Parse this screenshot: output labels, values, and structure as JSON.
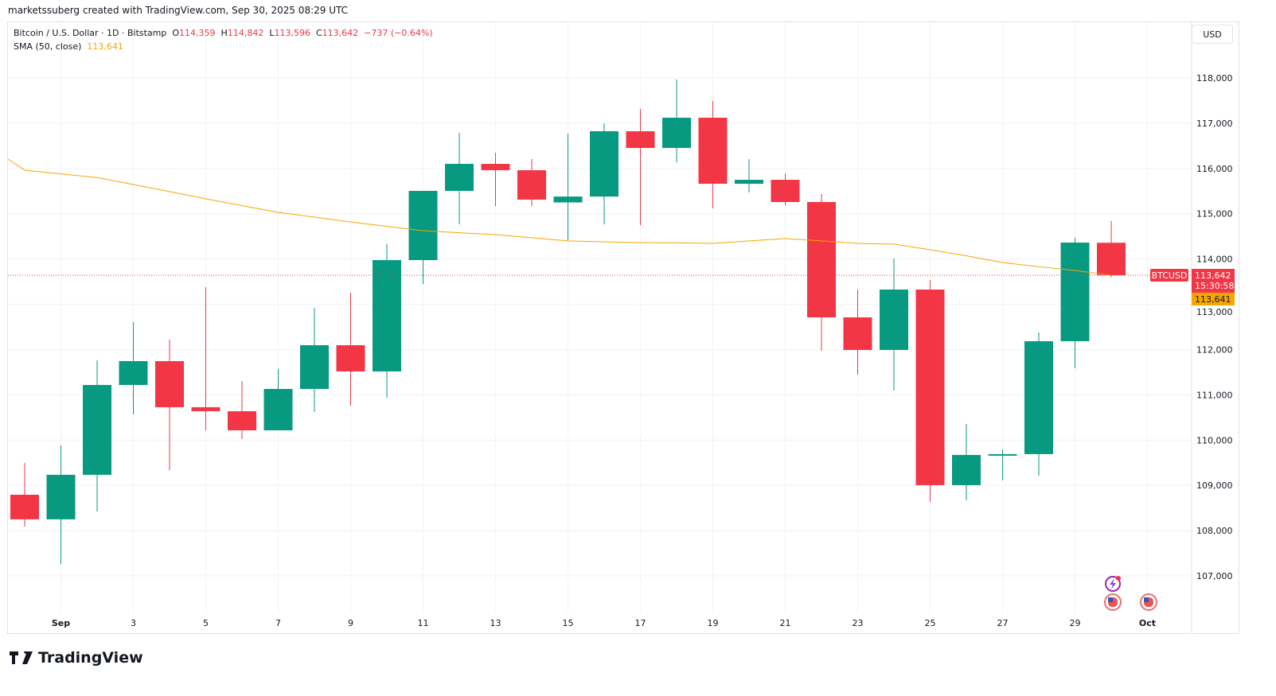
{
  "credit": "marketssuberg created with TradingView.com, Sep 30, 2025 08:29 UTC",
  "legend": {
    "symbol": "Bitcoin / U.S. Dollar · 1D · Bitstamp",
    "o_label": "O",
    "o": "114,359",
    "h_label": "H",
    "h": "114,842",
    "l_label": "L",
    "l": "113,596",
    "c_label": "C",
    "c": "113,642",
    "change": "−737 (−0.64%)",
    "sma_label": "SMA (50, close)",
    "sma_value": "113,641"
  },
  "currency_button": "USD",
  "logo_text": "TradingView",
  "price_tags": {
    "symbol": "BTCUSD",
    "last": "113,642",
    "countdown": "15:30:58",
    "sma": "113,641"
  },
  "colors": {
    "up": "#089981",
    "down": "#f23645",
    "sma": "#f7a600",
    "grid": "#f0f3fa"
  },
  "icons": [
    "lightning-event-icon",
    "us-flag-icon",
    "us-flag-icon"
  ],
  "chart_data": {
    "type": "candlestick",
    "ylim": [
      106300,
      118800
    ],
    "y_ticks": [
      "107,000",
      "108,000",
      "109,000",
      "110,000",
      "111,000",
      "112,000",
      "113,000",
      "114,000",
      "115,000",
      "116,000",
      "117,000",
      "118,000"
    ],
    "x_ticks": [
      "Sep",
      "3",
      "5",
      "7",
      "9",
      "11",
      "13",
      "15",
      "17",
      "19",
      "21",
      "23",
      "25",
      "27",
      "29",
      "Oct"
    ],
    "candles": [
      [
        "Aug 31",
        108793,
        109496,
        108090,
        108249
      ],
      [
        "Sep 1",
        108249,
        109882,
        107265,
        109233
      ],
      [
        "Sep 2",
        109233,
        111763,
        108424,
        111218
      ],
      [
        "Sep 3",
        111218,
        112606,
        110568,
        111745
      ],
      [
        "Sep 4",
        111745,
        112220,
        109338,
        110726
      ],
      [
        "Sep 5",
        110726,
        113379,
        110216,
        110638
      ],
      [
        "Sep 6",
        110638,
        111306,
        110023,
        110216
      ],
      [
        "Sep 7",
        110216,
        111570,
        110216,
        111130
      ],
      [
        "Sep 8",
        111130,
        112922,
        110621,
        112096
      ],
      [
        "Sep 9",
        112096,
        113256,
        110761,
        111517
      ],
      [
        "Sep 10",
        111517,
        114328,
        110937,
        113976
      ],
      [
        "Sep 11",
        113976,
        115505,
        113449,
        115505
      ],
      [
        "Sep 12",
        115505,
        116788,
        114767,
        116102
      ],
      [
        "Sep 13",
        116102,
        116348,
        115171,
        115962
      ],
      [
        "Sep 14",
        115962,
        116208,
        115171,
        115312
      ],
      [
        "Sep 15",
        115250,
        116770,
        114416,
        115380
      ],
      [
        "Sep 16",
        115380,
        117000,
        114767,
        116823
      ],
      [
        "Sep 17",
        116823,
        117315,
        114750,
        116454
      ],
      [
        "Sep 18",
        116454,
        117965,
        116138,
        117121
      ],
      [
        "Sep 19",
        117121,
        117490,
        115118,
        115663
      ],
      [
        "Sep 20",
        115663,
        116208,
        115470,
        115750
      ],
      [
        "Sep 21",
        115750,
        115890,
        115189,
        115259
      ],
      [
        "Sep 22",
        115259,
        115435,
        111973,
        112711
      ],
      [
        "Sep 23",
        112711,
        113326,
        111446,
        111991
      ],
      [
        "Sep 24",
        111991,
        114011,
        111095,
        113326
      ],
      [
        "Sep 25",
        113326,
        113537,
        108635,
        109004
      ],
      [
        "Sep 26",
        109004,
        110357,
        108670,
        109672
      ],
      [
        "Sep 27",
        109672,
        109795,
        109110,
        109690
      ],
      [
        "Sep 28",
        109690,
        112378,
        109215,
        112184
      ],
      [
        "Sep 29",
        112184,
        114468,
        111587,
        114363
      ],
      [
        "Sep 30",
        114359,
        114842,
        113596,
        113642
      ]
    ],
    "sma": [
      115962,
      115880,
      115800,
      115646,
      115490,
      115329,
      115180,
      115030,
      114925,
      114820,
      114720,
      114627,
      114580,
      114539,
      114470,
      114400,
      114380,
      114363,
      114355,
      114346,
      114400,
      114451,
      114400,
      114346,
      114330,
      114205,
      114070,
      113924,
      113830,
      113748,
      113641
    ],
    "last_price": 113642
  }
}
